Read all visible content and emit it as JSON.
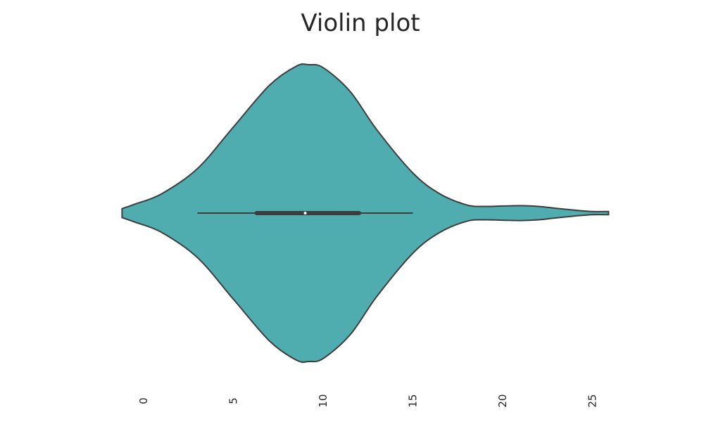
{
  "chart_data": {
    "type": "violin",
    "title": "Violin plot",
    "xlabel": "",
    "ylabel": "",
    "xlim": [
      -1.7,
      26.0
    ],
    "xticks": [
      "0",
      "5",
      "10",
      "15",
      "20",
      "25"
    ],
    "tick_label_rotation": -90,
    "grid": false,
    "fill_color": "#4fadb0",
    "edge_color": "#3d3d3d",
    "density_profile": {
      "x": [
        -1.2,
        -0.5,
        1,
        3,
        5,
        7,
        8.5,
        9.2,
        10,
        11.5,
        13,
        15,
        16.5,
        18,
        19,
        20,
        21,
        22,
        23,
        24,
        25,
        25.9
      ],
      "half_width": [
        0.03,
        0.06,
        0.13,
        0.3,
        0.58,
        0.86,
        0.99,
        1.0,
        0.98,
        0.82,
        0.56,
        0.27,
        0.13,
        0.055,
        0.045,
        0.048,
        0.05,
        0.045,
        0.032,
        0.02,
        0.011,
        0.011
      ]
    },
    "box": {
      "q1": 6.3,
      "median": 9.0,
      "q3": 12.0,
      "whisker_low": 3.0,
      "whisker_high": 15.0
    }
  }
}
